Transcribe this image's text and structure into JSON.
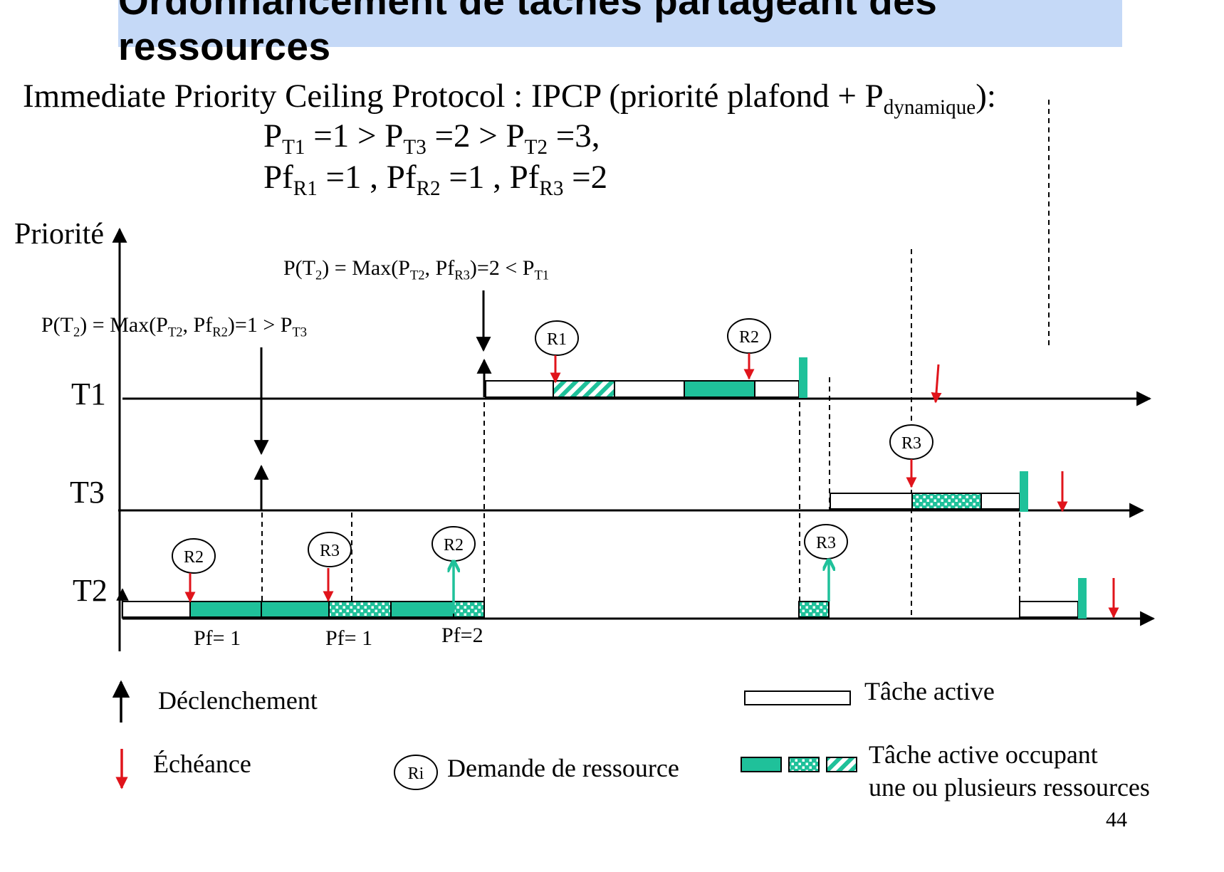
{
  "title": "Ordonnancement de tâches partageant des ressources",
  "protocol": {
    "line1_text": "Immediate Priority Ceiling Protocol : IPCP (priorité plafond + P",
    "line1_sub": "dynamique",
    "line1_end": "):",
    "line2": [
      {
        "main": "P",
        "sub": "T1"
      },
      {
        "main": " =1 > P",
        "sub": "T3"
      },
      {
        "main": " =2 > P",
        "sub": "T2"
      },
      {
        "main": " =3,",
        "sub": ""
      }
    ],
    "line3": [
      {
        "main": "Pf",
        "sub": "R1"
      },
      {
        "main": " =1 , Pf",
        "sub": "R2"
      },
      {
        "main": " =1 , Pf",
        "sub": "R3"
      },
      {
        "main": " =2",
        "sub": ""
      }
    ]
  },
  "axis": {
    "priority_label": "Priorité",
    "tasks": [
      "T1",
      "T3",
      "T2"
    ]
  },
  "annotations": {
    "a1": [
      {
        "main": "P(T",
        "sub": "2"
      },
      {
        "main": ") = Max(P",
        "sub": "T2"
      },
      {
        "main": ", Pf",
        "sub": "R2"
      },
      {
        "main": ")=1 > P",
        "sub": "T3"
      }
    ],
    "a2": [
      {
        "main": "P(T",
        "sub": "2"
      },
      {
        "main": ") = Max(P",
        "sub": "T2"
      },
      {
        "main": ", Pf",
        "sub": "R3"
      },
      {
        "main": ")=2 < P",
        "sub": "T1"
      }
    ]
  },
  "resource_labels": {
    "t1_r1": "R1",
    "t1_r2": "R2",
    "t3_r3": "R3",
    "t2_r2": "R2",
    "t2_r3": "R3",
    "t2_r2b": "R2",
    "t2_r3b": "R3"
  },
  "pf_labels": [
    "Pf= 1",
    "Pf= 1",
    "Pf=2"
  ],
  "legend": {
    "release": "Déclenchement",
    "deadline": "Échéance",
    "resource_symbol": "Ri",
    "resource_request": "Demande de ressource",
    "active_task": "Tâche active",
    "occupying_line1": "Tâche active occupant",
    "occupying_line2": "une ou plusieurs ressources"
  },
  "page_number": "44",
  "colors": {
    "title_bg": "#c5d9f7",
    "resource_fill": "#1fc19a",
    "deadline_arrow": "#e0141b",
    "resource_release_arrow": "#1fc19a"
  }
}
